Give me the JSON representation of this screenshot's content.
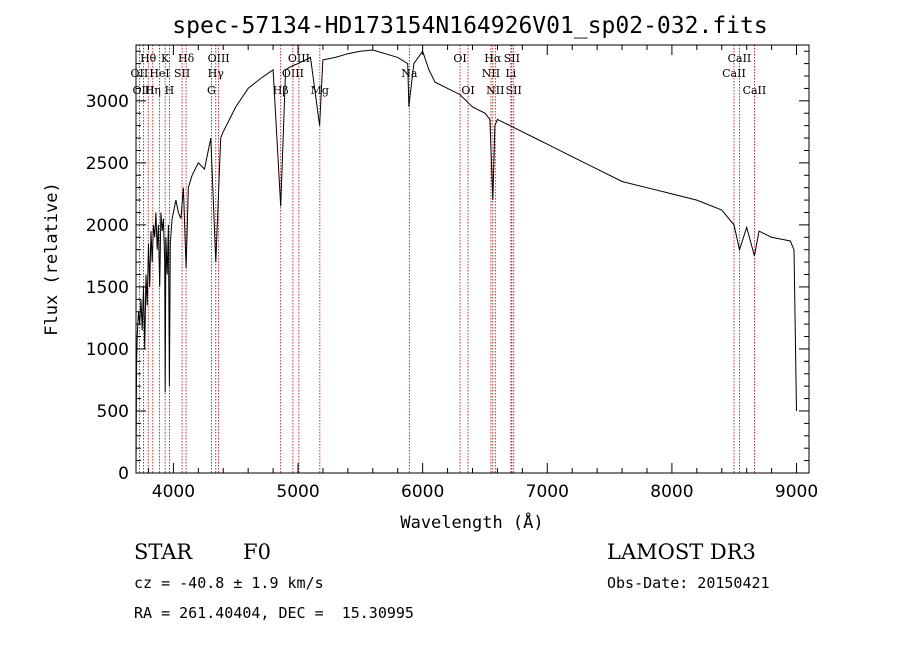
{
  "chart_data": {
    "type": "line",
    "title": "spec-57134-HD173154N164926V01_sp02-032.fits",
    "xlabel": "Wavelength (Å)",
    "ylabel": "Flux (relative)",
    "xlim": [
      3700,
      9100
    ],
    "ylim": [
      0,
      3450
    ],
    "x_ticks": [
      4000,
      5000,
      6000,
      7000,
      8000,
      9000
    ],
    "y_ticks": [
      0,
      500,
      1000,
      1500,
      2000,
      2500,
      3000
    ],
    "series": [
      {
        "name": "flux",
        "x": [
          3700,
          3705,
          3710,
          3720,
          3730,
          3740,
          3750,
          3760,
          3770,
          3780,
          3790,
          3800,
          3810,
          3820,
          3830,
          3840,
          3850,
          3860,
          3870,
          3880,
          3890,
          3900,
          3910,
          3920,
          3930,
          3934,
          3940,
          3950,
          3960,
          3968,
          3975,
          3990,
          4000,
          4020,
          4040,
          4060,
          4080,
          4102,
          4120,
          4150,
          4200,
          4250,
          4300,
          4340,
          4380,
          4400,
          4450,
          4500,
          4600,
          4700,
          4800,
          4861,
          4900,
          4950,
          5000,
          5100,
          5173,
          5200,
          5300,
          5400,
          5500,
          5600,
          5700,
          5800,
          5880,
          5890,
          5900,
          5930,
          6000,
          6050,
          6100,
          6200,
          6300,
          6400,
          6500,
          6540,
          6563,
          6580,
          6600,
          6700,
          6800,
          6900,
          7000,
          7200,
          7400,
          7600,
          7800,
          8000,
          8200,
          8400,
          8498,
          8542,
          8600,
          8662,
          8700,
          8800,
          8900,
          8950,
          8980,
          9000
        ],
        "y": [
          0,
          900,
          1100,
          1300,
          1200,
          1400,
          1150,
          1500,
          1000,
          1600,
          1350,
          1850,
          1500,
          1950,
          1700,
          2000,
          1900,
          2100,
          1800,
          2000,
          1500,
          2100,
          1950,
          2050,
          1700,
          650,
          1900,
          1600,
          2000,
          700,
          1850,
          2050,
          2100,
          2200,
          2100,
          2050,
          2300,
          1650,
          2300,
          2400,
          2500,
          2450,
          2700,
          1700,
          2700,
          2750,
          2850,
          2950,
          3100,
          3180,
          3250,
          2150,
          3250,
          3280,
          3300,
          3350,
          2800,
          3330,
          3350,
          3380,
          3400,
          3410,
          3380,
          3350,
          3300,
          2950,
          3050,
          3300,
          3400,
          3250,
          3150,
          3100,
          3050,
          2950,
          2900,
          2850,
          2200,
          2800,
          2850,
          2800,
          2750,
          2700,
          2650,
          2550,
          2450,
          2350,
          2300,
          2250,
          2200,
          2120,
          2000,
          1800,
          1980,
          1750,
          1950,
          1900,
          1880,
          1870,
          1800,
          500
        ]
      }
    ],
    "spectral_lines": [
      {
        "label": "Hθ",
        "wavelength": 3798,
        "row": 1
      },
      {
        "label": "OII",
        "wavelength": 3727,
        "row": 2
      },
      {
        "label": "OIII",
        "wavelength": 3760,
        "row": 3
      },
      {
        "label": "HeI",
        "wavelength": 3889,
        "row": 2
      },
      {
        "label": "Hη",
        "wavelength": 3835,
        "row": 3
      },
      {
        "label": "K",
        "wavelength": 3934,
        "row": 1
      },
      {
        "label": "H",
        "wavelength": 3968,
        "row": 3
      },
      {
        "label": "SII",
        "wavelength": 4070,
        "row": 2
      },
      {
        "label": "Hδ",
        "wavelength": 4102,
        "row": 1
      },
      {
        "label": "OIII",
        "wavelength": 4363,
        "row": 1
      },
      {
        "label": "Hγ",
        "wavelength": 4340,
        "row": 2
      },
      {
        "label": "G",
        "wavelength": 4305,
        "row": 3
      },
      {
        "label": "OIII",
        "wavelength": 5007,
        "row": 1
      },
      {
        "label": "OIII",
        "wavelength": 4959,
        "row": 2
      },
      {
        "label": "Hβ",
        "wavelength": 4861,
        "row": 3
      },
      {
        "label": "Mg",
        "wavelength": 5175,
        "row": 3
      },
      {
        "label": "Na",
        "wavelength": 5893,
        "row": 2
      },
      {
        "label": "OI",
        "wavelength": 6300,
        "row": 1
      },
      {
        "label": "OI",
        "wavelength": 6364,
        "row": 3
      },
      {
        "label": "Hα",
        "wavelength": 6563,
        "row": 1
      },
      {
        "label": "NII",
        "wavelength": 6548,
        "row": 2
      },
      {
        "label": "NII",
        "wavelength": 6583,
        "row": 3
      },
      {
        "label": "SII",
        "wavelength": 6716,
        "row": 1
      },
      {
        "label": "Li",
        "wavelength": 6708,
        "row": 2
      },
      {
        "label": "SII",
        "wavelength": 6731,
        "row": 3
      },
      {
        "label": "CaII",
        "wavelength": 8542,
        "row": 1
      },
      {
        "label": "CaII",
        "wavelength": 8498,
        "row": 2
      },
      {
        "label": "CaII",
        "wavelength": 8662,
        "row": 3
      }
    ]
  },
  "info": {
    "object_class": "STAR",
    "subclass": "F0",
    "survey": "LAMOST DR3",
    "cz": "cz = -40.8 ± 1.9 km/s",
    "obs_date": "Obs-Date: 20150421",
    "coords": "RA = 261.40404, DEC =  15.30995"
  },
  "colors": {
    "axes": "#000000",
    "spectrum": "#000000",
    "line_markers": "#b40000"
  }
}
